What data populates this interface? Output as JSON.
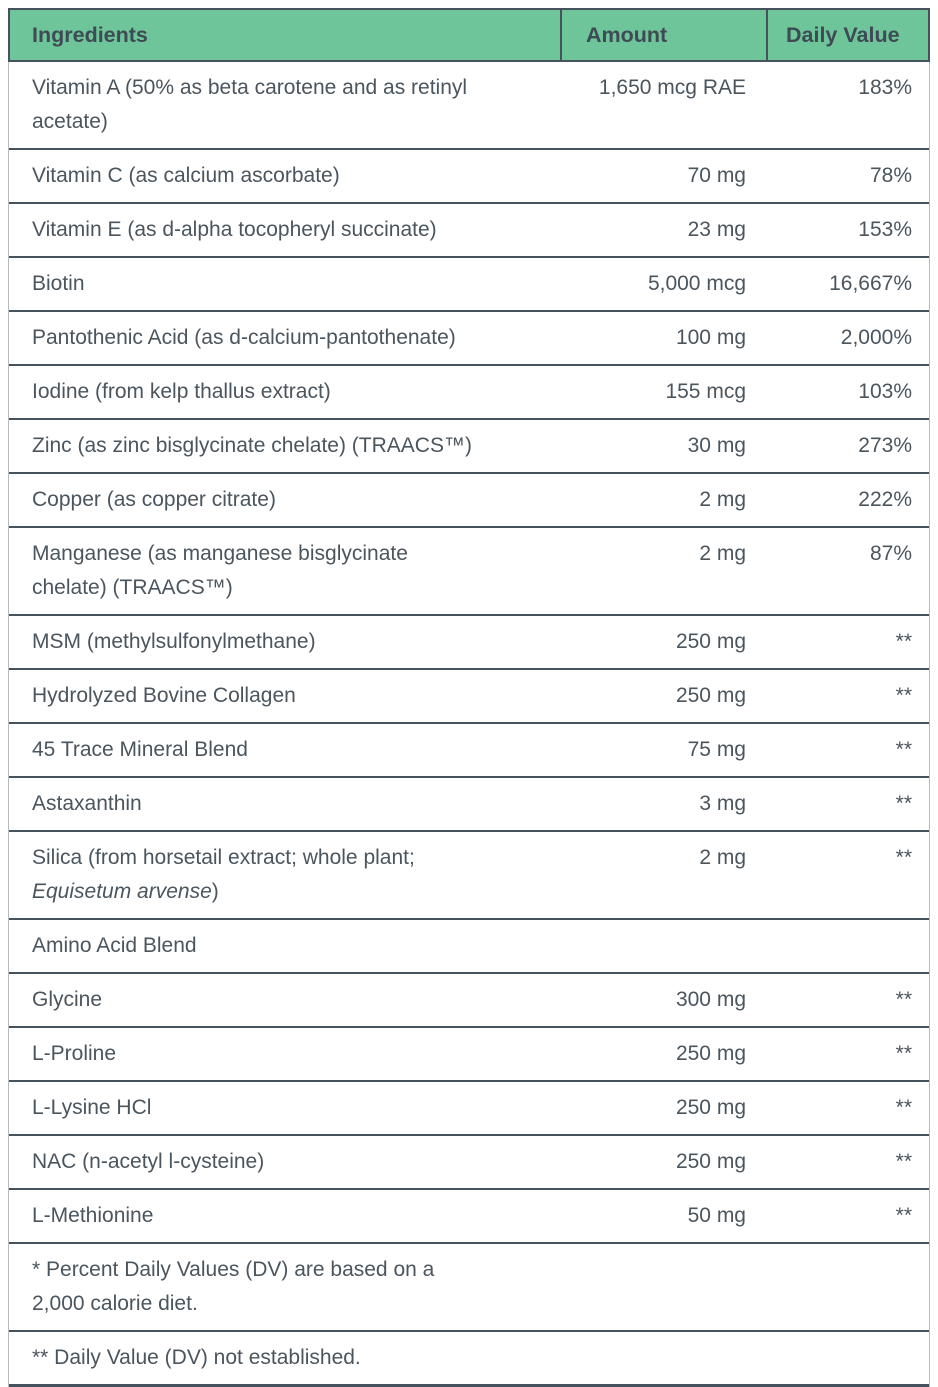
{
  "colors": {
    "header_bg": "#6ec599",
    "divider_dark": "#46535e",
    "outer_border_light": "#b9bdb9",
    "header_text": "#3e4a54",
    "body_text": "#4b555e"
  },
  "table": {
    "columns": [
      {
        "label": "Ingredients"
      },
      {
        "label": "Amount"
      },
      {
        "label": "Daily Value"
      }
    ],
    "rows": [
      {
        "line1": "Vitamin A (50% as beta carotene and as retinyl",
        "line2": "acetate)",
        "amount": "1,650 mcg RAE",
        "dv": "183%"
      },
      {
        "line1": "Vitamin C (as calcium ascorbate)",
        "amount": "70 mg",
        "dv": "78%"
      },
      {
        "line1": "Vitamin E (as d-alpha tocopheryl succinate)",
        "amount": "23 mg",
        "dv": "153%"
      },
      {
        "line1": "Biotin",
        "amount": "5,000 mcg",
        "dv": "16,667%"
      },
      {
        "line1": "Pantothenic Acid (as d-calcium-pantothenate)",
        "amount": "100 mg",
        "dv": "2,000%"
      },
      {
        "line1": "Iodine (from kelp thallus extract)",
        "amount": "155 mcg",
        "dv": "103%"
      },
      {
        "line1": "Zinc (as zinc bisglycinate chelate) (TRAACS™)",
        "amount": "30 mg",
        "dv": "273%"
      },
      {
        "line1": "Copper (as copper citrate)",
        "amount": "2 mg",
        "dv": "222%"
      },
      {
        "line1": "Manganese (as manganese bisglycinate",
        "line2": "chelate) (TRAACS™)",
        "amount": "2 mg",
        "dv": "87%"
      },
      {
        "line1": "MSM (methylsulfonylmethane)",
        "amount": "250 mg",
        "dv": "**"
      },
      {
        "line1": "Hydrolyzed Bovine Collagen",
        "amount": "250 mg",
        "dv": "**"
      },
      {
        "line1": "45 Trace Mineral Blend",
        "amount": "75 mg",
        "dv": "**"
      },
      {
        "line1": "Astaxanthin",
        "amount": "3 mg",
        "dv": "**"
      },
      {
        "line1": "Silica (from horsetail extract; whole plant;",
        "line2_italic": "Equisetum arvense",
        "line2_post": ")",
        "amount": "2 mg",
        "dv": "**"
      },
      {
        "line1": "Amino Acid Blend",
        "amount": "",
        "dv": ""
      },
      {
        "line1": "Glycine",
        "amount": "300 mg",
        "dv": "**"
      },
      {
        "line1": "L-Proline",
        "amount": "250 mg",
        "dv": "**"
      },
      {
        "line1": "L-Lysine HCl",
        "amount": "250 mg",
        "dv": "**"
      },
      {
        "line1": "NAC (n-acetyl l-cysteine)",
        "amount": "250 mg",
        "dv": "**"
      },
      {
        "line1": "L-Methionine",
        "amount": "50 mg",
        "dv": "**"
      }
    ],
    "footnotes": [
      {
        "lines": [
          "* Percent Daily Values (DV) are based on a",
          "2,000 calorie diet."
        ]
      },
      {
        "lines": [
          "** Daily Value (DV) not established."
        ]
      }
    ]
  }
}
